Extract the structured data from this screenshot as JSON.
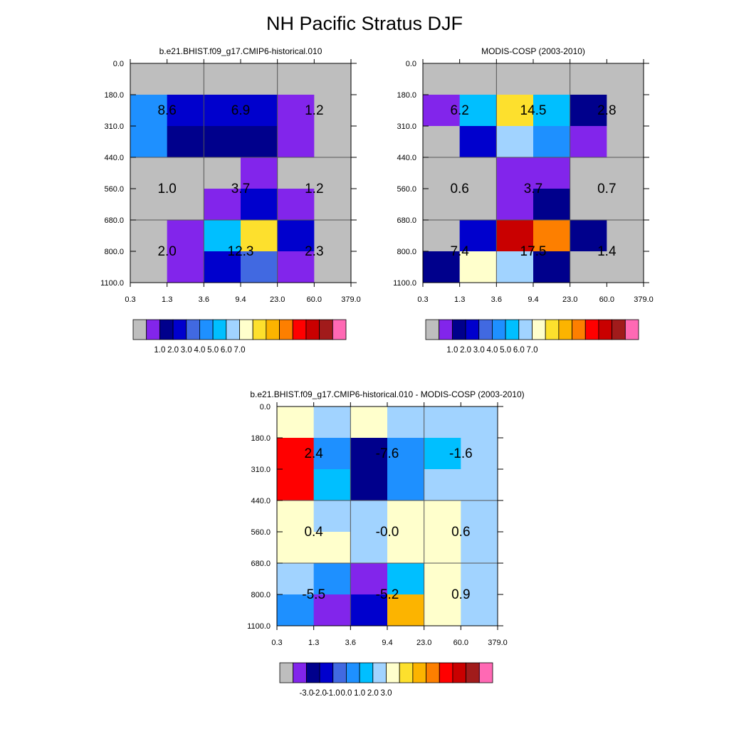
{
  "title": "NH Pacific Stratus DJF",
  "color_scales": {
    "absolute": [
      "#bebebe",
      "#8225eb",
      "#00008c",
      "#0000cd",
      "#4169e1",
      "#1e90ff",
      "#00bfff",
      "#a1d3ff",
      "#ffffcc",
      "#fde02d",
      "#fcb400",
      "#fd7f00",
      "#ff0000",
      "#c90000",
      "#a11b1b",
      "#ff69b4"
    ],
    "difference": [
      "#bebebe",
      "#8225eb",
      "#00008c",
      "#0000cd",
      "#4169e1",
      "#1e90ff",
      "#00bfff",
      "#a1d3ff",
      "#ffffcc",
      "#fde02d",
      "#fcb400",
      "#fd7f00",
      "#ff0000",
      "#c90000",
      "#a11b1b",
      "#ff69b4"
    ]
  },
  "chart_data": [
    {
      "type": "heatmap",
      "id": "model",
      "title": "b.e21.BHIST.f09_g17.CMIP6-historical.010",
      "x_bin_edges": [
        "0.3",
        "1.3",
        "3.6",
        "9.4",
        "23.0",
        "60.0",
        "379.0"
      ],
      "y_bin_edges": [
        "0.0",
        "180.0",
        "310.0",
        "440.0",
        "560.0",
        "680.0",
        "800.0",
        "1100.0"
      ],
      "cell_color_index": [
        [
          0,
          0,
          0,
          0,
          0,
          0
        ],
        [
          5,
          3,
          3,
          3,
          1,
          0
        ],
        [
          5,
          2,
          2,
          2,
          1,
          0
        ],
        [
          0,
          0,
          0,
          1,
          0,
          0
        ],
        [
          0,
          0,
          1,
          3,
          1,
          0
        ],
        [
          0,
          1,
          6,
          9,
          3,
          0
        ],
        [
          0,
          1,
          3,
          4,
          1,
          0
        ]
      ],
      "box_labels": [
        [
          "8.6",
          "6.9",
          "1.2"
        ],
        [
          "1.0",
          "3.7",
          "1.2"
        ],
        [
          "2.0",
          "12.3",
          "2.3"
        ]
      ],
      "colorbar_ticks": [
        "1.0",
        "2.0",
        "3.0",
        "4.0",
        "5.0",
        "6.0",
        "7.0"
      ]
    },
    {
      "type": "heatmap",
      "id": "obs",
      "title": "MODIS-COSP (2003-2010)",
      "x_bin_edges": [
        "0.3",
        "1.3",
        "3.6",
        "9.4",
        "23.0",
        "60.0",
        "379.0"
      ],
      "y_bin_edges": [
        "0.0",
        "180.0",
        "310.0",
        "440.0",
        "560.0",
        "680.0",
        "800.0",
        "1100.0"
      ],
      "cell_color_index": [
        [
          0,
          0,
          0,
          0,
          0,
          0
        ],
        [
          1,
          6,
          9,
          6,
          2,
          0
        ],
        [
          0,
          3,
          7,
          5,
          1,
          0
        ],
        [
          0,
          0,
          1,
          1,
          0,
          0
        ],
        [
          0,
          0,
          1,
          2,
          0,
          0
        ],
        [
          0,
          3,
          13,
          11,
          2,
          0
        ],
        [
          2,
          8,
          7,
          2,
          0,
          0
        ]
      ],
      "box_labels": [
        [
          "6.2",
          "14.5",
          "2.8"
        ],
        [
          "0.6",
          "3.7",
          "0.7"
        ],
        [
          "7.4",
          "17.5",
          "1.4"
        ]
      ],
      "colorbar_ticks": [
        "1.0",
        "2.0",
        "3.0",
        "4.0",
        "5.0",
        "6.0",
        "7.0"
      ]
    },
    {
      "type": "heatmap",
      "id": "diff",
      "title": "b.e21.BHIST.f09_g17.CMIP6-historical.010 - MODIS-COSP (2003-2010)",
      "x_bin_edges": [
        "0.3",
        "1.3",
        "3.6",
        "9.4",
        "23.0",
        "60.0",
        "379.0"
      ],
      "y_bin_edges": [
        "0.0",
        "180.0",
        "310.0",
        "440.0",
        "560.0",
        "680.0",
        "800.0",
        "1100.0"
      ],
      "cell_color_index": [
        [
          8,
          7,
          8,
          7,
          7,
          7
        ],
        [
          12,
          5,
          2,
          5,
          6,
          7
        ],
        [
          12,
          6,
          2,
          5,
          7,
          7
        ],
        [
          8,
          7,
          7,
          8,
          8,
          7
        ],
        [
          8,
          8,
          7,
          8,
          8,
          7
        ],
        [
          7,
          5,
          1,
          6,
          8,
          7
        ],
        [
          5,
          1,
          3,
          10,
          8,
          7
        ]
      ],
      "box_labels": [
        [
          "2.4",
          "-7.6",
          "-1.6"
        ],
        [
          "0.4",
          "-0.0",
          "0.6"
        ],
        [
          "-5.5",
          "-5.2",
          "0.9"
        ]
      ],
      "colorbar_ticks": [
        "-3.0",
        "-2.0",
        "-1.0",
        "0.0",
        "1.0",
        "2.0",
        "3.0"
      ]
    }
  ]
}
